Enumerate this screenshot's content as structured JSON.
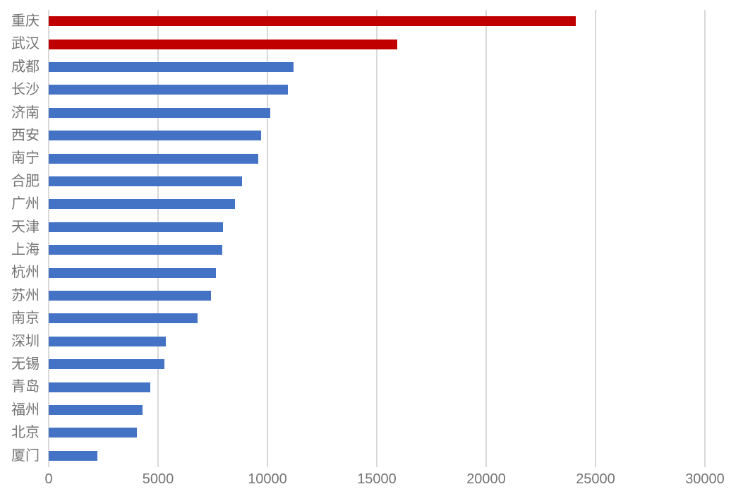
{
  "chart_data": {
    "type": "bar",
    "orientation": "horizontal",
    "title": "",
    "xlabel": "",
    "ylabel": "",
    "legend": "none",
    "grid": true,
    "categories": [
      "重庆",
      "武汉",
      "成都",
      "长沙",
      "济南",
      "西安",
      "南宁",
      "合肥",
      "广州",
      "天津",
      "上海",
      "杭州",
      "苏州",
      "南京",
      "深圳",
      "无锡",
      "青岛",
      "福州",
      "北京",
      "厦门"
    ],
    "values": [
      24100,
      15950,
      11190,
      10930,
      10120,
      9720,
      9580,
      8830,
      8500,
      7980,
      7950,
      7660,
      7430,
      6820,
      5370,
      5290,
      4630,
      4300,
      4040,
      2230
    ],
    "highlight_indices": [
      0,
      1
    ],
    "xlim": [
      0,
      30000
    ],
    "x_ticks": [
      0,
      5000,
      10000,
      15000,
      20000,
      25000,
      30000
    ],
    "x_tick_labels": [
      "0",
      "5000",
      "10000",
      "15000",
      "20000",
      "25000",
      "30000"
    ],
    "colors": {
      "highlight_bar": "#C00000",
      "default_bar": "#4472C4",
      "gridline": "#D9D9D9",
      "axis_text": "#757575",
      "background": "#FFFFFF"
    }
  }
}
